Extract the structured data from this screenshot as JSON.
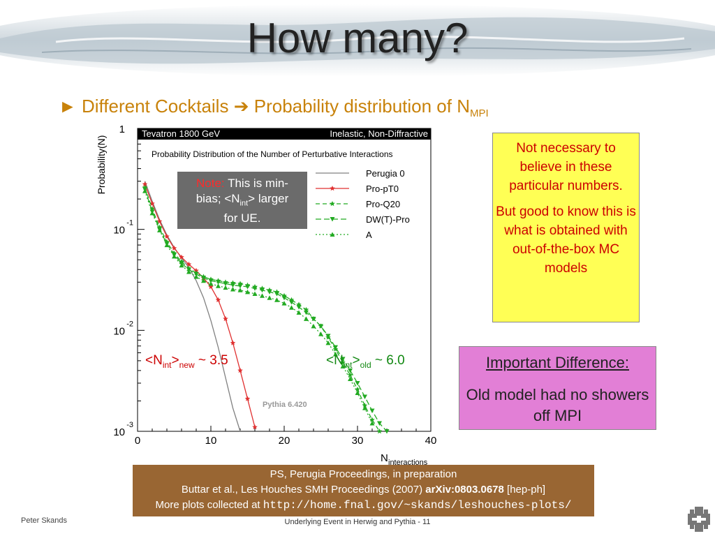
{
  "slide": {
    "title": "How many?",
    "bullet_marker": "►",
    "bullet_text_a": "Different Cocktails",
    "bullet_arrow": "➔",
    "bullet_text_b": "Probability distribution of N",
    "bullet_sub": "MPI"
  },
  "note_box": {
    "note_label": "Note:",
    "line1": "This is min-",
    "line2a": "bias; <N",
    "line2_sub": "int",
    "line2b": "> larger",
    "line3": "for UE."
  },
  "yellow_box": {
    "para1": "Not necessary to believe in these particular numbers.",
    "para2": "But good to know this is what is obtained with out-of-the-box MC models"
  },
  "pink_box": {
    "heading": "Important Difference:",
    "body": "Old model had no showers off MPI"
  },
  "annotations": {
    "new_pre": "<N",
    "new_sub1": "int",
    "new_mid": ">",
    "new_sub2": "new",
    "new_post": " ~ 3.5",
    "old_pre": "<N",
    "old_sub1": "int",
    "old_mid": ">",
    "old_sub2": "old",
    "old_post": " ~ 6.0"
  },
  "references": {
    "line1": "PS, Perugia Proceedings, in preparation",
    "line2": "Buttar et al., Les Houches SMH Proceedings (2007)",
    "line2_bold": "arXiv:0803.0678",
    "line2_tail": "[hep-ph]",
    "line3": "More plots collected at",
    "line3_url": "http://home.fnal.gov/~skands/leshouches-plots/"
  },
  "footer": {
    "left": "Peter Skands",
    "center": "Underlying Event in Herwig and Pythia - 11"
  },
  "colors": {
    "bullet": "#c8820a",
    "perugia": "#808080",
    "propt0": "#e03030",
    "green": "#22aa22",
    "header_bar": "#000000"
  },
  "chart_data": {
    "type": "line",
    "header_left": "Tevatron 1800 GeV",
    "header_right": "Inelastic, Non-Diffractive",
    "title": "Probability Distribution of the Number of Perturbative Interactions",
    "xlabel": "N",
    "xlabel_sub": "interactions",
    "ylabel": "Probability(N)",
    "watermark": "Pythia 6.420",
    "xlim": [
      0,
      40
    ],
    "ylim": [
      0.001,
      1
    ],
    "yscale": "log",
    "x_ticks": [
      "0",
      "10",
      "20",
      "30",
      "40"
    ],
    "y_ticks": [
      {
        "base": "1",
        "exp": ""
      },
      {
        "base": "10",
        "exp": "-1"
      },
      {
        "base": "10",
        "exp": "-2"
      },
      {
        "base": "10",
        "exp": "-3"
      }
    ],
    "legend_position": "top-right",
    "series": [
      {
        "name": "Perugia 0",
        "color": "#808080",
        "dash": "solid",
        "marker": "none",
        "x": [
          1,
          2,
          3,
          4,
          5,
          6,
          7,
          8,
          9,
          10,
          11,
          12,
          13,
          14
        ],
        "y": [
          0.3,
          0.19,
          0.125,
          0.088,
          0.066,
          0.052,
          0.042,
          0.031,
          0.021,
          0.0125,
          0.0068,
          0.0034,
          0.0017,
          0.001
        ]
      },
      {
        "name": "Pro-pT0",
        "color": "#e03030",
        "dash": "solid",
        "marker": "star",
        "x": [
          1,
          2,
          3,
          4,
          5,
          6,
          7,
          8,
          9,
          10,
          11,
          12,
          13,
          14,
          15,
          16
        ],
        "y": [
          0.28,
          0.18,
          0.12,
          0.085,
          0.065,
          0.053,
          0.045,
          0.039,
          0.033,
          0.027,
          0.02,
          0.013,
          0.0075,
          0.004,
          0.0021,
          0.0011
        ]
      },
      {
        "name": "Pro-Q20",
        "color": "#22aa22",
        "dash": "6,4",
        "marker": "star",
        "x": [
          1,
          2,
          3,
          4,
          5,
          6,
          7,
          8,
          9,
          10,
          11,
          12,
          13,
          14,
          15,
          16,
          17,
          18,
          19,
          20,
          21,
          22,
          23,
          24,
          25,
          26,
          27,
          28,
          29,
          30,
          31,
          32,
          33
        ],
        "y": [
          0.26,
          0.16,
          0.105,
          0.075,
          0.058,
          0.048,
          0.041,
          0.037,
          0.034,
          0.032,
          0.031,
          0.03,
          0.0295,
          0.029,
          0.028,
          0.027,
          0.026,
          0.025,
          0.024,
          0.022,
          0.02,
          0.018,
          0.016,
          0.013,
          0.011,
          0.0085,
          0.0065,
          0.0048,
          0.0036,
          0.0026,
          0.0018,
          0.0013,
          0.001
        ]
      },
      {
        "name": "DW(T)-Pro",
        "color": "#22aa22",
        "dash": "8,4",
        "marker": "tri-down",
        "x": [
          1,
          2,
          3,
          4,
          5,
          6,
          7,
          8,
          9,
          10,
          11,
          12,
          13,
          14,
          15,
          16,
          17,
          18,
          19,
          20,
          21,
          22,
          23,
          24,
          25,
          26,
          27,
          28,
          29,
          30,
          31,
          32,
          33,
          34
        ],
        "y": [
          0.25,
          0.15,
          0.1,
          0.072,
          0.056,
          0.046,
          0.04,
          0.036,
          0.033,
          0.031,
          0.03,
          0.029,
          0.028,
          0.0275,
          0.027,
          0.026,
          0.025,
          0.024,
          0.023,
          0.021,
          0.019,
          0.017,
          0.015,
          0.013,
          0.011,
          0.0088,
          0.0068,
          0.0052,
          0.004,
          0.003,
          0.0022,
          0.0016,
          0.0012,
          0.001
        ]
      },
      {
        "name": "A",
        "color": "#22aa22",
        "dash": "2,3",
        "marker": "tri-up",
        "x": [
          1,
          2,
          3,
          4,
          5,
          6,
          7,
          8,
          9,
          10,
          11,
          12,
          13,
          14,
          15,
          16,
          17,
          18,
          19,
          20,
          21,
          22,
          23,
          24,
          25,
          26,
          27,
          28,
          29,
          30,
          31,
          32
        ],
        "y": [
          0.24,
          0.145,
          0.098,
          0.07,
          0.054,
          0.044,
          0.038,
          0.034,
          0.031,
          0.029,
          0.0275,
          0.0265,
          0.0255,
          0.025,
          0.024,
          0.023,
          0.022,
          0.021,
          0.02,
          0.0185,
          0.0168,
          0.015,
          0.013,
          0.011,
          0.0092,
          0.0075,
          0.0058,
          0.0044,
          0.0033,
          0.0024,
          0.0017,
          0.0012
        ]
      }
    ]
  }
}
